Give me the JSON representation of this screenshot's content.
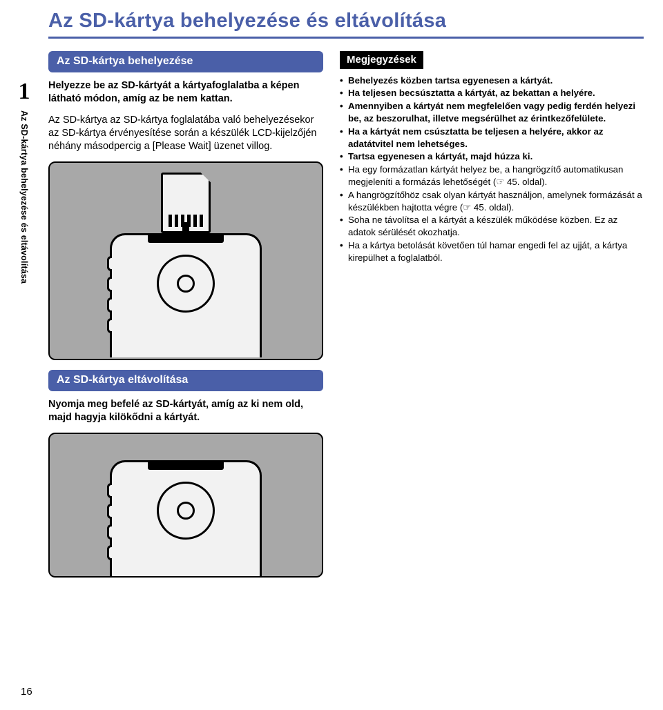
{
  "colors": {
    "accent": "#4a5fa8",
    "text": "#000000",
    "tagBg": "#000000",
    "illusBg": "#a8a8a8",
    "deviceFill": "#f2f2f2"
  },
  "typography": {
    "title_fontsize": 29,
    "body_fontsize": 14.5,
    "notes_fontsize": 13.3,
    "pill_fontsize": 16
  },
  "title": "Az SD-kártya behelyezése és eltávolítása",
  "side": {
    "chapter_number": "1",
    "vertical_label": "Az SD-kártya behelyezése és eltávolítása"
  },
  "left": {
    "heading_insert": "Az SD-kártya behelyezése",
    "para_insert_1": "Helyezze be az SD-kártyát a kártyafoglalatba a képen látható módon, amíg az be nem kattan.",
    "para_insert_2": "Az SD-kártya az SD-kártya foglalatába való behelyezésekor az SD-kártya érvényesítése során a készülék LCD-kijelzőjén néhány másodpercig a [Please Wait] üzenet villog.",
    "heading_remove": "Az SD-kártya eltávolítása",
    "para_remove": "Nyomja meg befelé az SD-kártyát, amíg az ki nem old, majd hagyja kilökődni a kártyát."
  },
  "right": {
    "notes_label": "Megjegyzések",
    "items": [
      {
        "bold": true,
        "text": "Behelyezés közben tartsa egyenesen a kártyát."
      },
      {
        "bold": true,
        "text": "Ha teljesen becsúsztatta a kártyát, az bekattan a helyére."
      },
      {
        "bold": true,
        "text": "Amennyiben a kártyát nem megfelelően vagy pedig ferdén helyezi be, az beszorulhat, illetve megsérülhet az érintkezőfelülete."
      },
      {
        "bold": true,
        "text": "Ha a kártyát nem csúsztatta be teljesen a helyére, akkor az adatátvitel nem lehetséges."
      },
      {
        "bold": true,
        "text": "Tartsa egyenesen a kártyát, majd húzza ki."
      },
      {
        "bold": false,
        "text": "Ha egy formázatlan kártyát helyez be, a hangrögzítő automatikusan megjeleníti a formázás lehetőségét (☞ 45. oldal)."
      },
      {
        "bold": false,
        "text": "A hangrögzítőhöz csak olyan kártyát használjon, amelynek formázását a készülékben hajtotta végre (☞ 45. oldal)."
      },
      {
        "bold": false,
        "text": "Soha ne távolítsa el a kártyát a készülék működése közben. Ez az adatok sérülését okozhatja."
      },
      {
        "bold": false,
        "text": "Ha a kártya betolását követően túl hamar engedi fel az ujját, a kártya kirepülhet a foglalatból."
      }
    ]
  },
  "page_number": "16"
}
